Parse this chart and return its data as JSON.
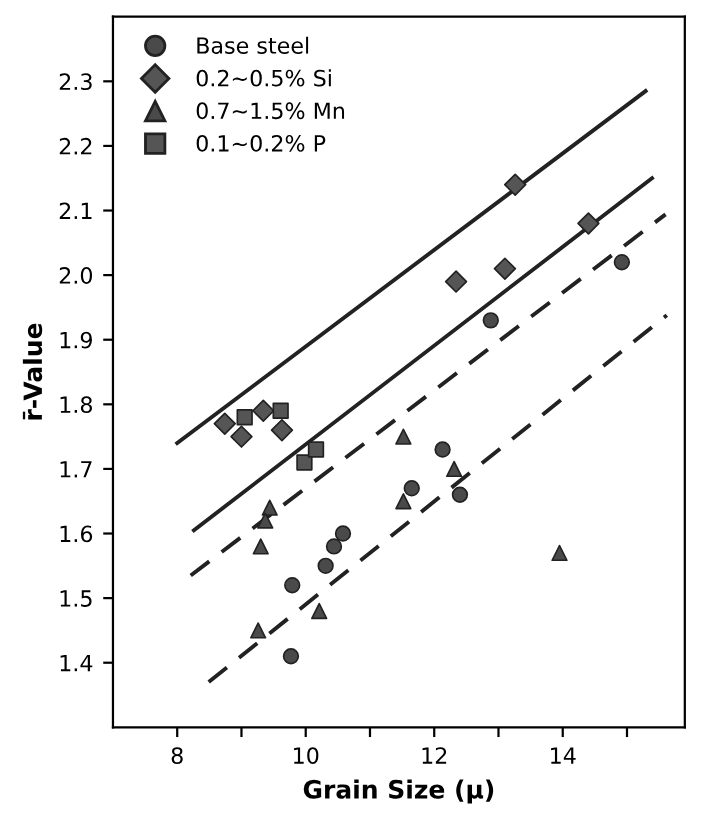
{
  "chart_data": {
    "type": "scatter",
    "xlabel": "Grain Size (μ)",
    "ylabel": "r̄-Value",
    "xlim": [
      7,
      15.9
    ],
    "ylim": [
      1.3,
      2.4
    ],
    "xticks": [
      8,
      {
        "value": 9,
        "label": null
      },
      10,
      {
        "value": 11,
        "label": null
      },
      12,
      {
        "value": 13,
        "label": null
      },
      14,
      {
        "value": 15,
        "label": null
      }
    ],
    "yticks": [
      1.4,
      1.5,
      1.6,
      1.7,
      1.8,
      1.9,
      {
        "value": 2,
        "label": "2.0"
      },
      2.1,
      2.2,
      2.3
    ],
    "grid": false,
    "legend": "top left",
    "series": [
      {
        "name": "Base steel",
        "color": "#4a4a4a",
        "marker": "circle",
        "x": [
          9.79,
          9.77,
          12.13,
          11.65,
          12.4,
          10.58,
          10.44,
          10.31,
          12.88,
          14.92
        ],
        "values": [
          1.52,
          1.41,
          1.73,
          1.67,
          1.66,
          1.6,
          1.58,
          1.55,
          1.93,
          2.02
        ]
      },
      {
        "name": "0.2~0.5% Si",
        "color": "#555555",
        "marker": "diamond",
        "x": [
          8.74,
          9.0,
          9.34,
          9.63,
          12.34,
          13.1,
          14.4,
          13.26
        ],
        "values": [
          1.77,
          1.75,
          1.79,
          1.76,
          1.99,
          2.01,
          2.08,
          2.14
        ]
      },
      {
        "name": "0.7~1.5% Mn",
        "color": "#4a4a4a",
        "marker": "triangle",
        "x": [
          9.44,
          9.37,
          9.3,
          9.26,
          10.21,
          11.52,
          11.52,
          12.31,
          13.95
        ],
        "values": [
          1.64,
          1.62,
          1.58,
          1.45,
          1.48,
          1.75,
          1.65,
          1.7,
          1.57
        ]
      },
      {
        "name": "0.1~0.2% P",
        "color": "#555555",
        "marker": "square",
        "x": [
          9.05,
          9.61,
          9.98,
          10.16
        ],
        "values": [
          1.78,
          1.79,
          1.71,
          1.73
        ]
      },
      {
        "type": "line",
        "color": "#222222",
        "line_style": "solid",
        "x": [
          8.0,
          15.29
        ],
        "values": [
          1.74,
          2.285
        ]
      },
      {
        "type": "line",
        "color": "#222222",
        "line_style": "solid",
        "x": [
          8.26,
          15.39
        ],
        "values": [
          1.605,
          2.15
        ]
      },
      {
        "type": "line",
        "color": "#222222",
        "line_style": "dashed",
        "x": [
          8.21,
          15.6
        ],
        "values": [
          1.535,
          2.094
        ]
      },
      {
        "type": "line",
        "color": "#222222",
        "line_style": "dashed",
        "x": [
          8.49,
          15.62
        ],
        "values": [
          1.37,
          1.938
        ]
      }
    ]
  }
}
